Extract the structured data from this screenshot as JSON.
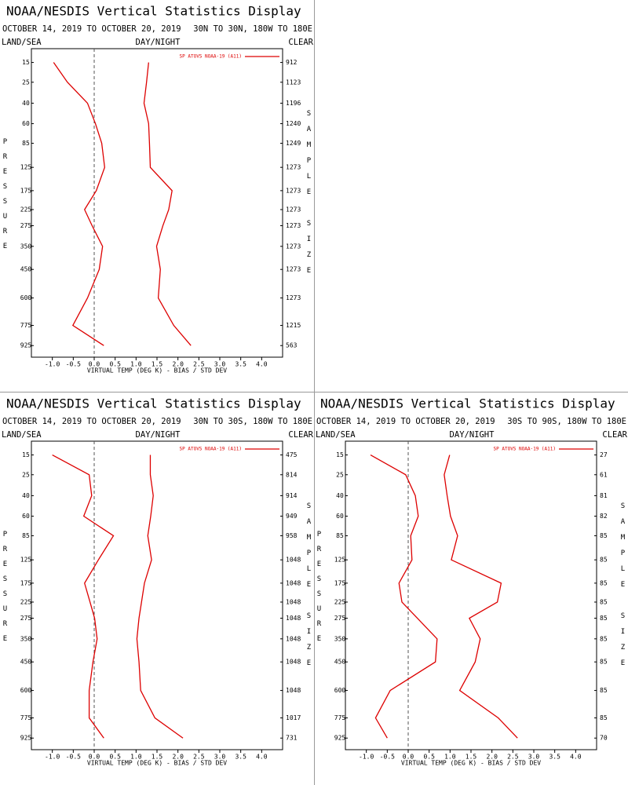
{
  "chart_data": [
    {
      "type": "line",
      "title": "NOAA/NESDIS Vertical Statistics Display",
      "subtitle": "OCTOBER 14, 2019 TO OCTOBER 20, 2019",
      "region": "30N TO 30N, 180W TO 180E",
      "left_label": "LAND/SEA",
      "center_label": "DAY/NIGHT",
      "right_label": "CLEAR",
      "ylabel": "PRESSURE",
      "y2label": "SAMPLE SIZE",
      "xlabel": "VIRTUAL TEMP (DEG K) - BIAS / STD DEV",
      "y": [
        15,
        25,
        40,
        60,
        85,
        125,
        175,
        225,
        275,
        350,
        450,
        600,
        775,
        925
      ],
      "ylim": [
        10,
        1020
      ],
      "y_exponent": 0.286,
      "sample_sizes": [
        912,
        1123,
        1196,
        1240,
        1249,
        1273,
        1273,
        1273,
        1273,
        1273,
        1273,
        1273,
        1215,
        563
      ],
      "xlim": [
        -1.5,
        4.5
      ],
      "xticks": [
        {
          "value": -1,
          "label": "-1.0"
        },
        -0.5,
        {
          "value": 0,
          "label": "0.0"
        },
        0.5,
        {
          "value": 1,
          "label": "1.0"
        },
        1.5,
        {
          "value": 2,
          "label": "2.0"
        },
        2.5,
        {
          "value": 3,
          "label": "3.0"
        },
        3.5,
        {
          "value": 4,
          "label": "4.0"
        }
      ],
      "legend": "upper right",
      "grid": false,
      "series": [
        {
          "name": "SP ATOVS NOAA-19 (A11)",
          "color": "#dd0000",
          "values": [
            -0.97,
            -0.64,
            -0.16,
            0.03,
            0.18,
            0.25,
            0.05,
            -0.23,
            -0.05,
            0.2,
            0.12,
            -0.16,
            -0.51,
            0.23
          ]
        },
        {
          "color": "#dd0000",
          "values": [
            1.3,
            1.25,
            1.19,
            1.3,
            1.32,
            1.34,
            1.86,
            1.78,
            1.64,
            1.49,
            1.58,
            1.53,
            1.9,
            2.31
          ]
        }
      ]
    },
    {
      "type": "line",
      "title": "NOAA/NESDIS Vertical Statistics Display",
      "subtitle": "OCTOBER 14, 2019 TO OCTOBER 20, 2019",
      "region": "30N TO 30S, 180W TO 180E",
      "left_label": "LAND/SEA",
      "center_label": "DAY/NIGHT",
      "right_label": "CLEAR",
      "ylabel": "PRESSURE",
      "y2label": "SAMPLE SIZE",
      "xlabel": "VIRTUAL TEMP (DEG K) - BIAS / STD DEV",
      "y": [
        15,
        25,
        40,
        60,
        85,
        125,
        175,
        225,
        275,
        350,
        450,
        600,
        775,
        925
      ],
      "ylim": [
        10,
        1020
      ],
      "y_exponent": 0.286,
      "sample_sizes": [
        475,
        814,
        914,
        949,
        958,
        1048,
        1048,
        1048,
        1048,
        1048,
        1048,
        1048,
        1017,
        731
      ],
      "xlim": [
        -1.5,
        4.5
      ],
      "xticks": [
        {
          "value": -1,
          "label": "-1.0"
        },
        -0.5,
        {
          "value": 0,
          "label": "0.0"
        },
        0.5,
        {
          "value": 1,
          "label": "1.0"
        },
        1.5,
        {
          "value": 2,
          "label": "2.0"
        },
        2.5,
        {
          "value": 3,
          "label": "3.0"
        },
        3.5,
        {
          "value": 4,
          "label": "4.0"
        }
      ],
      "legend": "upper right",
      "grid": false,
      "series": [
        {
          "name": "SP ATOVS NOAA-19 (A11)",
          "color": "#dd0000",
          "values": [
            -1.0,
            -0.12,
            -0.06,
            -0.25,
            0.46,
            0.1,
            -0.23,
            -0.1,
            0.01,
            0.07,
            -0.03,
            -0.12,
            -0.12,
            0.23
          ]
        },
        {
          "color": "#dd0000",
          "values": [
            1.34,
            1.34,
            1.41,
            1.35,
            1.28,
            1.37,
            1.2,
            1.13,
            1.07,
            1.02,
            1.07,
            1.11,
            1.45,
            2.12
          ]
        }
      ]
    },
    {
      "type": "line",
      "title": "NOAA/NESDIS Vertical Statistics Display",
      "subtitle": "OCTOBER 14, 2019 TO OCTOBER 20, 2019",
      "region": "30S TO 90S, 180W TO 180E",
      "left_label": "LAND/SEA",
      "center_label": "DAY/NIGHT",
      "right_label": "CLEAR",
      "ylabel": "PRESSURE",
      "y2label": "SAMPLE SIZE",
      "xlabel": "VIRTUAL TEMP (DEG K) - BIAS / STD DEV",
      "y": [
        15,
        25,
        40,
        60,
        85,
        125,
        175,
        225,
        275,
        350,
        450,
        600,
        775,
        925
      ],
      "ylim": [
        10,
        1020
      ],
      "y_exponent": 0.286,
      "sample_sizes": [
        27,
        61,
        81,
        82,
        85,
        85,
        85,
        85,
        85,
        85,
        85,
        85,
        85,
        70
      ],
      "xlim": [
        -1.5,
        4.5
      ],
      "xticks": [
        {
          "value": -1,
          "label": "-1.0"
        },
        -0.5,
        {
          "value": 0,
          "label": "0.0"
        },
        0.5,
        {
          "value": 1,
          "label": "1.0"
        },
        1.5,
        {
          "value": 2,
          "label": "2.0"
        },
        2.5,
        {
          "value": 3,
          "label": "3.0"
        },
        3.5,
        {
          "value": 4,
          "label": "4.0"
        }
      ],
      "legend": "upper right",
      "grid": false,
      "series": [
        {
          "name": "SP ATOVS NOAA-19 (A11)",
          "color": "#dd0000",
          "values": [
            -0.9,
            -0.06,
            0.17,
            0.24,
            0.06,
            0.09,
            -0.22,
            -0.15,
            0.22,
            0.69,
            0.65,
            -0.43,
            -0.78,
            -0.5
          ]
        },
        {
          "color": "#dd0000",
          "values": [
            0.99,
            0.86,
            0.93,
            1.01,
            1.18,
            1.03,
            2.22,
            2.13,
            1.46,
            1.72,
            1.6,
            1.23,
            2.15,
            2.61
          ]
        }
      ]
    }
  ]
}
